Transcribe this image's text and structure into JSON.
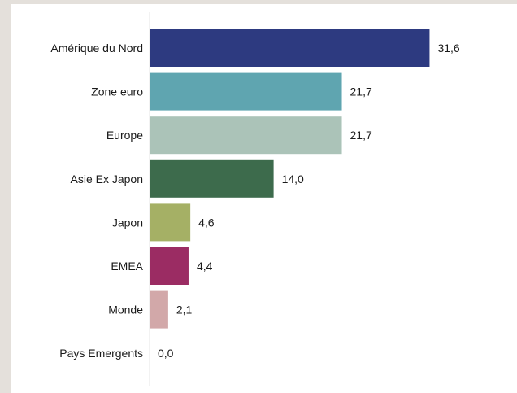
{
  "chart_data": {
    "type": "bar",
    "orientation": "horizontal",
    "title": "",
    "xlabel": "",
    "ylabel": "",
    "categories": [
      "Amérique du Nord",
      "Zone euro",
      "Europe",
      "Asie Ex Japon",
      "Japon",
      "EMEA",
      "Monde",
      "Pays Emergents"
    ],
    "values": [
      31.6,
      21.7,
      21.7,
      14.0,
      4.6,
      4.4,
      2.1,
      0.0
    ],
    "value_labels": [
      "31,6",
      "21,7",
      "21,7",
      "14,0",
      "4,6",
      "4,4",
      "2,1",
      "0,0"
    ],
    "colors": [
      "#2d3a80",
      "#5fa5b0",
      "#abc3b8",
      "#3d6b4c",
      "#a5b065",
      "#9b2c63",
      "#d2a8a9",
      "#cccccc"
    ],
    "xlim": [
      0,
      32
    ],
    "grid": false,
    "legend": "none"
  }
}
